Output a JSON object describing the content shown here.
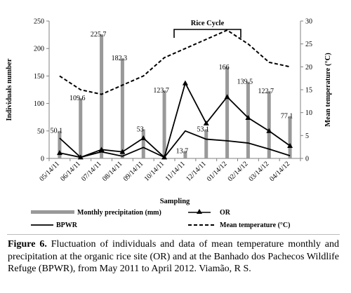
{
  "chart_data": {
    "type": "bar+line",
    "categories": [
      "05/14/11",
      "06/14/11",
      "07/14/11",
      "08/14/11",
      "09/14/11",
      "10/14/11",
      "11/14/11",
      "12/14/11",
      "01/14/12",
      "02/14/12",
      "03/14/12",
      "04/14/12"
    ],
    "xlabel": "Sampling",
    "ylabel_left": "Individuals number",
    "ylabel_right": "Mean temperature (°C)",
    "ylim_left": [
      0,
      250
    ],
    "ylim_right": [
      0,
      30
    ],
    "yticks_left": [
      "0",
      "50",
      "100",
      "150",
      "200",
      "250"
    ],
    "yticks_right": [
      "0",
      "5",
      "10",
      "15",
      "20",
      "25",
      "30"
    ],
    "precipitation": {
      "name": "Monthly precipitation (mm)",
      "values": [
        50.1,
        109.6,
        225.7,
        182.3,
        53,
        123.7,
        13.7,
        53.1,
        166,
        139.5,
        122.7,
        77.1
      ],
      "labels": [
        "50.1",
        "109.6",
        "225.7",
        "182.3",
        "53",
        "123.7",
        "13.7",
        "53.1",
        "166",
        "139.5",
        "122.7",
        "77.1"
      ],
      "color": "#999999"
    },
    "series": [
      {
        "name": "OR",
        "axis": "left",
        "marker": "triangle",
        "values": [
          10,
          2,
          16,
          12,
          37,
          2,
          137,
          64,
          112,
          74,
          50,
          23
        ]
      },
      {
        "name": "BPWR",
        "axis": "left",
        "marker": "none",
        "values": [
          37,
          2,
          12,
          4,
          20,
          2,
          50,
          35,
          32,
          28,
          17,
          5
        ]
      },
      {
        "name": "Mean temperature (°C)",
        "axis": "right",
        "style": "dashed",
        "values": [
          18,
          15,
          14,
          16,
          18,
          22,
          24,
          26,
          28,
          25,
          21,
          20
        ]
      }
    ],
    "annotation": "Rice Cycle",
    "legend_placement": "bottom",
    "grid": false
  },
  "caption": {
    "label": "Figure 6.",
    "text": " Fluctuation of individuals and data of mean temperature monthly and precipitation at the organic rice site (OR) and at the Banhado dos Pachecos Wildlife Refuge (BPWR), from May 2011 to April 2012. Viamão, R S."
  }
}
